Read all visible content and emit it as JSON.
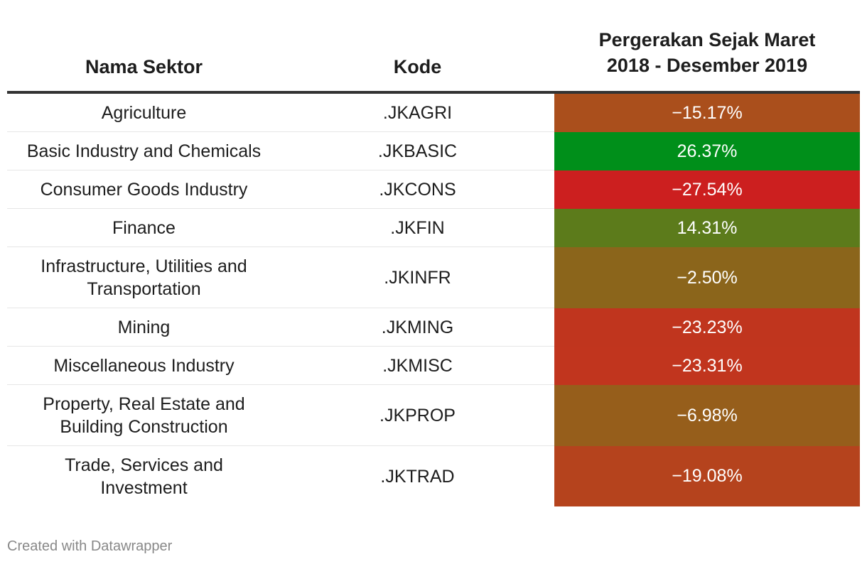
{
  "chart_data": {
    "type": "table",
    "columns": [
      "Nama Sektor",
      "Kode",
      "Pergerakan Sejak Maret 2018 - Desember 2019"
    ],
    "header_move_lines": [
      "Pergerakan Sejak Maret",
      "2018 - Desember 2019"
    ],
    "rows": [
      {
        "name": "Agriculture",
        "code": ".JKAGRI",
        "movement": "−15.17%",
        "value": -15.17,
        "color": "#aa4f1c"
      },
      {
        "name": "Basic Industry and Chemicals",
        "code": ".JKBASIC",
        "movement": "26.37%",
        "value": 26.37,
        "color": "#008f1a"
      },
      {
        "name": "Consumer Goods Industry",
        "code": ".JKCONS",
        "movement": "−27.54%",
        "value": -27.54,
        "color": "#cc1f1f"
      },
      {
        "name": "Finance",
        "code": ".JKFIN",
        "movement": "14.31%",
        "value": 14.31,
        "color": "#5c7b1b"
      },
      {
        "name": "Infrastructure, Utilities and Transportation",
        "code": ".JKINFR",
        "movement": "−2.50%",
        "value": -2.5,
        "color": "#8b651b"
      },
      {
        "name": "Mining",
        "code": ".JKMING",
        "movement": "−23.23%",
        "value": -23.23,
        "color": "#c0351e"
      },
      {
        "name": "Miscellaneous Industry",
        "code": ".JKMISC",
        "movement": "−23.31%",
        "value": -23.31,
        "color": "#c1351e"
      },
      {
        "name": "Property, Real Estate and Building Construction",
        "code": ".JKPROP",
        "movement": "−6.98%",
        "value": -6.98,
        "color": "#965e1b"
      },
      {
        "name": "Trade, Services and Investment",
        "code": ".JKTRAD",
        "movement": "−19.08%",
        "value": -19.08,
        "color": "#b5431d"
      }
    ]
  },
  "footer": {
    "credit": "Created with Datawrapper"
  }
}
